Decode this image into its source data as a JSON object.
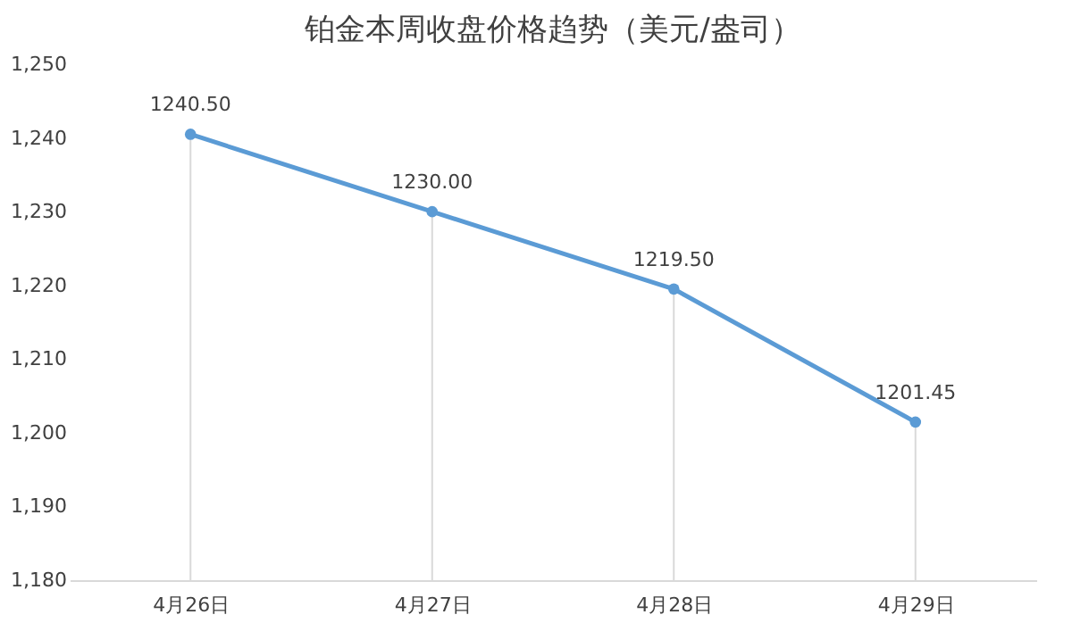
{
  "chart_data": {
    "type": "line",
    "title": "铂金本周收盘价格趋势（美元/盎司）",
    "categories": [
      "4月26日",
      "4月27日",
      "4月28日",
      "4月29日"
    ],
    "series": [
      {
        "color": "#5b9bd5",
        "values": [
          1240.5,
          1230.0,
          1219.5,
          1201.45
        ],
        "value_labels": [
          "1240.50",
          "1230.00",
          "1219.50",
          "1201.45"
        ]
      }
    ],
    "ylim": [
      1180,
      1250
    ],
    "yticks": [
      {
        "value": 1180,
        "label": "1,180"
      },
      {
        "value": 1190,
        "label": "1,190"
      },
      {
        "value": 1200,
        "label": "1,200"
      },
      {
        "value": 1210,
        "label": "1,210"
      },
      {
        "value": 1220,
        "label": "1,220"
      },
      {
        "value": 1230,
        "label": "1,230"
      },
      {
        "value": 1240,
        "label": "1,240"
      },
      {
        "value": 1250,
        "label": "1,250"
      }
    ],
    "grid": "x",
    "marker": "circle",
    "line_style": "solid"
  }
}
